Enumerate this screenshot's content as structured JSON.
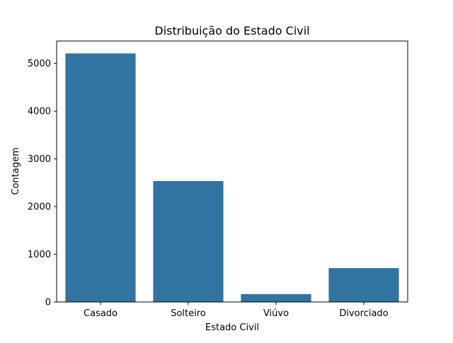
{
  "chart_data": {
    "type": "bar",
    "title": "Distribuição do Estado Civil",
    "xlabel": "Estado Civil",
    "ylabel": "Contagem",
    "categories": [
      "Casado",
      "Solteiro",
      "Viúvo",
      "Divorciado"
    ],
    "values": [
      5210,
      2535,
      165,
      710
    ],
    "ylim": [
      0,
      5470
    ],
    "yticks": [
      0,
      1000,
      2000,
      3000,
      4000,
      5000
    ],
    "ytick_labels": [
      "0",
      "1000",
      "2000",
      "3000",
      "4000",
      "5000"
    ],
    "bar_color": "#3274a1",
    "grid": false,
    "legend": "none"
  }
}
